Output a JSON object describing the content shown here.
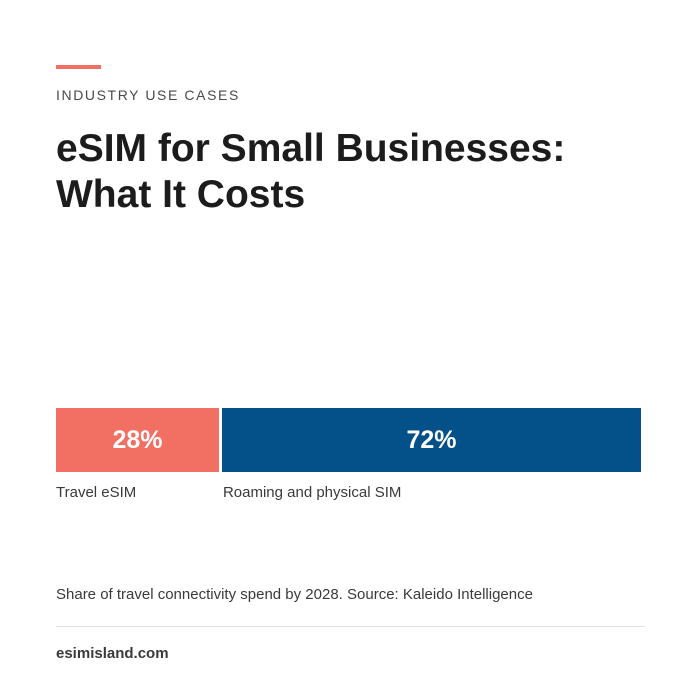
{
  "eyebrow": "INDUSTRY USE CASES",
  "headline": {
    "line1": "eSIM for Small Businesses:",
    "line2": "What It Costs"
  },
  "caption": "Share of travel connectivity spend by 2028. Source: Kaleido Intelligence",
  "footer": {
    "site": "esimisland.com"
  },
  "colors": {
    "accent": "#f26f63",
    "travel": "#f26f63",
    "roaming": "#045089"
  },
  "chart_data": {
    "type": "bar",
    "orientation": "horizontal-stacked",
    "categories": [
      "Travel eSIM",
      "Roaming and physical SIM"
    ],
    "values": [
      28,
      72
    ],
    "value_labels": [
      "28%",
      "72%"
    ],
    "unit": "%",
    "total": 100,
    "title": "",
    "xlabel": "",
    "ylabel": ""
  }
}
